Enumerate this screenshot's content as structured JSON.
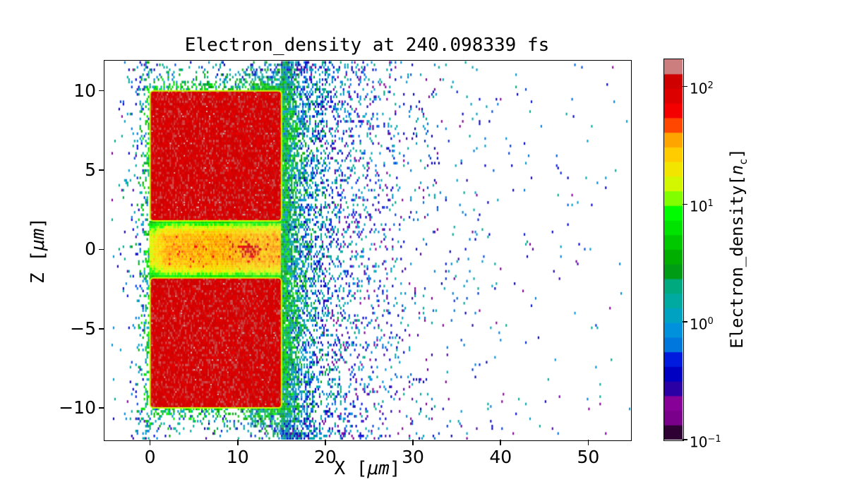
{
  "chart_data": {
    "type": "heatmap",
    "title": "Electron_density at 240.098339 fs",
    "xlabel": "X [μm]",
    "ylabel": "Z [μm]",
    "xlim": [
      -5.2,
      54.8
    ],
    "ylim": [
      -12.0,
      11.9
    ],
    "xticks": [
      0,
      10,
      20,
      30,
      40,
      50
    ],
    "yticks": [
      -10,
      -5,
      0,
      5,
      10
    ],
    "grid": false,
    "legend": "none",
    "colorbar": {
      "label_text": "Electron_density[nc]",
      "label_parts": [
        "Electron_density[",
        "n",
        "c",
        "]"
      ],
      "scale": "log",
      "vmin": 0.1,
      "vmax": 170,
      "n_bands": 26,
      "tick_base": "10",
      "tick_values": [
        100,
        10,
        1,
        0.1
      ],
      "tick_exponents": [
        "2",
        "1",
        "0",
        "−1"
      ]
    },
    "colormap": {
      "name": "nipy_spectral",
      "stops": [
        [
          0.0,
          "#000000"
        ],
        [
          0.05,
          "#770088"
        ],
        [
          0.1,
          "#880099"
        ],
        [
          0.15,
          "#0000AA"
        ],
        [
          0.2,
          "#0000DD"
        ],
        [
          0.25,
          "#0077DD"
        ],
        [
          0.3,
          "#0099DD"
        ],
        [
          0.35,
          "#00AAAA"
        ],
        [
          0.4,
          "#00AA88"
        ],
        [
          0.45,
          "#009900"
        ],
        [
          0.5,
          "#00BB00"
        ],
        [
          0.55,
          "#00DD00"
        ],
        [
          0.6,
          "#00FF00"
        ],
        [
          0.65,
          "#BBFF00"
        ],
        [
          0.7,
          "#EEEE00"
        ],
        [
          0.75,
          "#FFCC00"
        ],
        [
          0.8,
          "#FF9900"
        ],
        [
          0.85,
          "#FF0000"
        ],
        [
          0.9,
          "#DD0000"
        ],
        [
          0.95,
          "#CC0000"
        ],
        [
          1.0,
          "#CCCCCC"
        ]
      ]
    },
    "features": {
      "target_blocks": [
        {
          "x": [
            0,
            15
          ],
          "z": [
            1.8,
            10
          ],
          "density_nc": 100,
          "edge_color_value_nc": 14
        },
        {
          "x": [
            0,
            15
          ],
          "z": [
            -10,
            -1.8
          ],
          "density_nc": 100,
          "edge_color_value_nc": 14
        }
      ],
      "channel": {
        "x": [
          0,
          15
        ],
        "z": [
          -1.8,
          1.8
        ],
        "core_density_nc": 28,
        "edge_density_nc": 5
      },
      "hotspot": {
        "x": [
          9.5,
          13.5
        ],
        "z": [
          -0.6,
          0.6
        ],
        "peak_density_nc": 130
      },
      "halo_speckle_density_range_nc": [
        0.15,
        8
      ],
      "seed": 987654321
    }
  }
}
